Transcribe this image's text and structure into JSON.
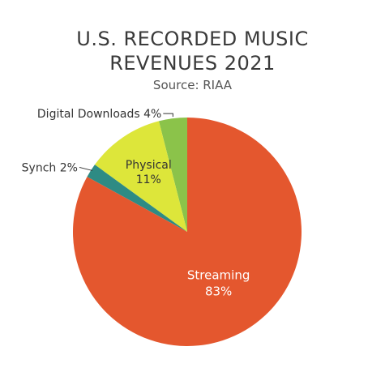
{
  "chart_data": {
    "type": "pie",
    "title_lines": [
      "U.S. RECORDED MUSIC",
      "REVENUES 2021"
    ],
    "subtitle": "Source: RIAA",
    "slices": [
      {
        "name": "Digital Downloads",
        "value": 4,
        "pct_label": "4%",
        "label": "Digital Downloads 4%",
        "color": "#8bc34a"
      },
      {
        "name": "Physical",
        "value": 11,
        "pct_label": "11%",
        "label": "Physical",
        "color": "#dde63a"
      },
      {
        "name": "Synch",
        "value": 2,
        "pct_label": "2%",
        "label": "Synch 2%",
        "color": "#2e8b84"
      },
      {
        "name": "Streaming",
        "value": 83,
        "pct_label": "83%",
        "label": "Streaming",
        "color": "#e4572e"
      }
    ],
    "start_angle": "12 o'clock",
    "direction": "counter-clockwise",
    "legend": "none"
  }
}
